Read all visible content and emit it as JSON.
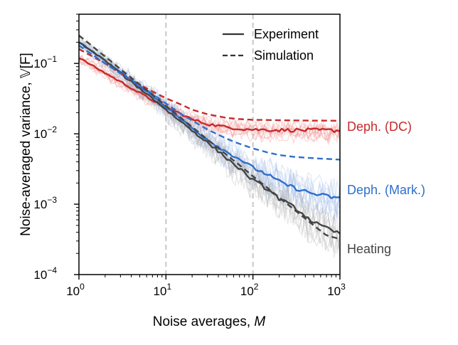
{
  "chart_data": {
    "type": "line",
    "title": "",
    "xlabel": "Noise averages, ",
    "xlabel_var": "M",
    "ylabel": "Noise-averaged variance, 𝕍[F]",
    "xscale": "log",
    "yscale": "log",
    "xlim": [
      1,
      1000
    ],
    "ylim": [
      0.0001,
      0.5
    ],
    "x_ticks": [
      {
        "value": 1,
        "base": "10",
        "exp": "0"
      },
      {
        "value": 10,
        "base": "10",
        "exp": "1"
      },
      {
        "value": 100,
        "base": "10",
        "exp": "2"
      },
      {
        "value": 1000,
        "base": "10",
        "exp": "3"
      }
    ],
    "y_ticks": [
      {
        "value": 0.0001,
        "base": "10",
        "exp": "−4"
      },
      {
        "value": 0.001,
        "base": "10",
        "exp": "−3"
      },
      {
        "value": 0.01,
        "base": "10",
        "exp": "−2"
      },
      {
        "value": 0.1,
        "base": "10",
        "exp": "−1"
      }
    ],
    "vlines": [
      10,
      100
    ],
    "legend": {
      "placement": "top-right",
      "entries": [
        {
          "label": "Experiment",
          "style": "solid"
        },
        {
          "label": "Simulation",
          "style": "dashed"
        }
      ]
    },
    "series": [
      {
        "name": "Deph. (DC)",
        "color": "#c62a2a",
        "band_color": "#f08080",
        "experiment": {
          "x": [
            1,
            2,
            3,
            5,
            7,
            10,
            15,
            20,
            30,
            50,
            70,
            100,
            150,
            200,
            300,
            500,
            700,
            1000
          ],
          "y": [
            0.12,
            0.073,
            0.055,
            0.038,
            0.03,
            0.024,
            0.019,
            0.016,
            0.0138,
            0.0124,
            0.0119,
            0.0115,
            0.0114,
            0.0113,
            0.0113,
            0.0112,
            0.0112,
            0.0112
          ]
        },
        "simulation": {
          "x": [
            1,
            2,
            3,
            5,
            7,
            10,
            15,
            20,
            30,
            50,
            70,
            100,
            150,
            200,
            300,
            500,
            700,
            1000
          ],
          "y": [
            0.16,
            0.1,
            0.072,
            0.05,
            0.04,
            0.032,
            0.026,
            0.022,
            0.019,
            0.0168,
            0.0162,
            0.0158,
            0.0157,
            0.0156,
            0.0155,
            0.0154,
            0.0154,
            0.0153
          ]
        }
      },
      {
        "name": "Deph. (Mark.)",
        "color": "#2e6fcc",
        "band_color": "#9ab8e6",
        "experiment": {
          "x": [
            1,
            2,
            3,
            5,
            7,
            10,
            15,
            20,
            30,
            50,
            70,
            100,
            150,
            200,
            300,
            500,
            700,
            1000
          ],
          "y": [
            0.2,
            0.11,
            0.075,
            0.047,
            0.035,
            0.024,
            0.016,
            0.012,
            0.0083,
            0.0055,
            0.0044,
            0.0033,
            0.0026,
            0.0021,
            0.0017,
            0.0014,
            0.0013,
            0.0012
          ]
        },
        "simulation": {
          "x": [
            1,
            2,
            3,
            5,
            7,
            10,
            15,
            20,
            30,
            50,
            70,
            100,
            150,
            200,
            300,
            500,
            700,
            1000
          ],
          "y": [
            0.18,
            0.1,
            0.072,
            0.048,
            0.037,
            0.027,
            0.019,
            0.0155,
            0.0115,
            0.0085,
            0.0072,
            0.0062,
            0.0054,
            0.005,
            0.0047,
            0.0045,
            0.0044,
            0.0043
          ]
        }
      },
      {
        "name": "Heating",
        "color": "#444444",
        "band_color": "#b0b0b0",
        "experiment": {
          "x": [
            1,
            2,
            3,
            5,
            7,
            10,
            15,
            20,
            30,
            50,
            70,
            100,
            150,
            200,
            300,
            500,
            700,
            1000
          ],
          "y": [
            0.2,
            0.11,
            0.072,
            0.044,
            0.032,
            0.022,
            0.0148,
            0.0112,
            0.0075,
            0.0045,
            0.0032,
            0.0022,
            0.0016,
            0.0012,
            0.0009,
            0.00055,
            0.00045,
            0.00038
          ]
        },
        "simulation": {
          "x": [
            1,
            2,
            3,
            5,
            7,
            10,
            15,
            20,
            30,
            50,
            70,
            100,
            150,
            200,
            300,
            500,
            700,
            1000
          ],
          "y": [
            0.25,
            0.125,
            0.083,
            0.05,
            0.036,
            0.025,
            0.0167,
            0.0125,
            0.0083,
            0.005,
            0.0036,
            0.0025,
            0.00167,
            0.00125,
            0.00083,
            0.0005,
            0.00036,
            0.00032
          ]
        }
      }
    ]
  }
}
